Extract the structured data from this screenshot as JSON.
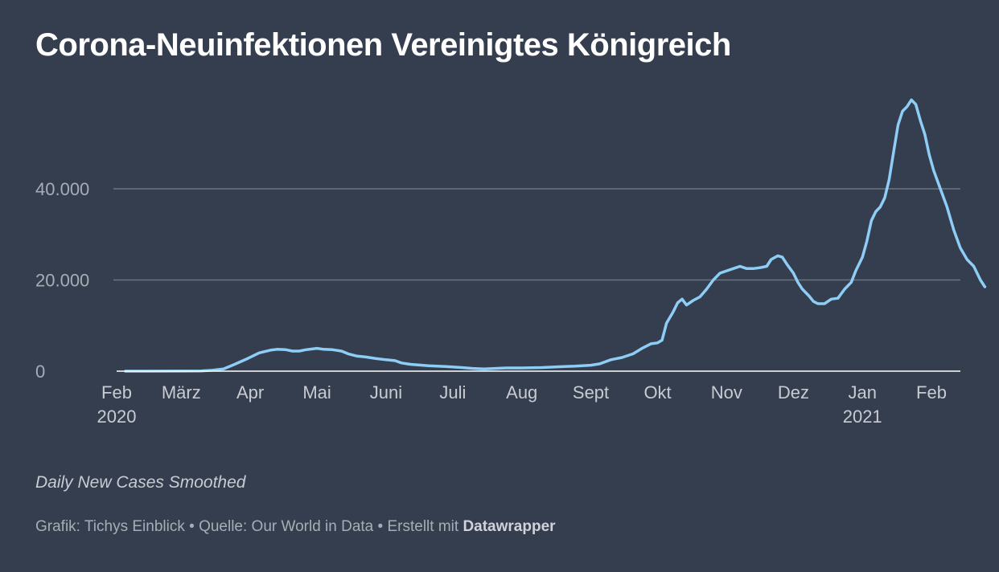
{
  "title": "Corona-Neuinfektionen Vereinigtes Königreich",
  "note": "Daily New Cases Smoothed",
  "credits": {
    "grafik_label": "Grafik:",
    "grafik_value": "Tichys Einblick",
    "sep1": "•",
    "quelle_label": "Quelle:",
    "quelle_value": "Our World in Data",
    "sep2": "•",
    "erstellt_label": "Erstellt mit",
    "tool": "Datawrapper"
  },
  "colors": {
    "background": "#343e4e",
    "line": "#8ecdf5",
    "gridline": "#6b737f",
    "baseline": "#ffffff"
  },
  "chart_data": {
    "type": "line",
    "title": "Corona-Neuinfektionen Vereinigtes Königreich",
    "ylim": [
      0,
      60000
    ],
    "yticks": [
      {
        "value": 0,
        "label": "0"
      },
      {
        "value": 20000,
        "label": "20.000"
      },
      {
        "value": 40000,
        "label": "40.000"
      }
    ],
    "xlim": [
      "2020-02-01",
      "2021-02-28"
    ],
    "xticks": [
      {
        "date": "2020-02-01",
        "label": "Feb",
        "year": "2020"
      },
      {
        "date": "2020-03-01",
        "label": "März"
      },
      {
        "date": "2020-04-01",
        "label": "Apr"
      },
      {
        "date": "2020-05-01",
        "label": "Mai"
      },
      {
        "date": "2020-06-01",
        "label": "Juni"
      },
      {
        "date": "2020-07-01",
        "label": "Juli"
      },
      {
        "date": "2020-08-01",
        "label": "Aug"
      },
      {
        "date": "2020-09-01",
        "label": "Sept"
      },
      {
        "date": "2020-10-01",
        "label": "Okt"
      },
      {
        "date": "2020-11-01",
        "label": "Nov"
      },
      {
        "date": "2020-12-01",
        "label": "Dez"
      },
      {
        "date": "2021-01-01",
        "label": "Jan",
        "year": "2021"
      },
      {
        "date": "2021-02-01",
        "label": "Feb"
      }
    ],
    "grid": true,
    "series": [
      {
        "points": [
          [
            "2020-02-01",
            0
          ],
          [
            "2020-02-15",
            0
          ],
          [
            "2020-03-01",
            10
          ],
          [
            "2020-03-10",
            60
          ],
          [
            "2020-03-15",
            200
          ],
          [
            "2020-03-20",
            500
          ],
          [
            "2020-03-25",
            1500
          ],
          [
            "2020-03-31",
            2800
          ],
          [
            "2020-04-05",
            4000
          ],
          [
            "2020-04-10",
            4600
          ],
          [
            "2020-04-13",
            4800
          ],
          [
            "2020-04-17",
            4700
          ],
          [
            "2020-04-20",
            4400
          ],
          [
            "2020-04-23",
            4400
          ],
          [
            "2020-04-26",
            4700
          ],
          [
            "2020-05-01",
            5000
          ],
          [
            "2020-05-04",
            4800
          ],
          [
            "2020-05-08",
            4700
          ],
          [
            "2020-05-12",
            4400
          ],
          [
            "2020-05-15",
            3800
          ],
          [
            "2020-05-19",
            3300
          ],
          [
            "2020-05-23",
            3100
          ],
          [
            "2020-05-27",
            2800
          ],
          [
            "2020-06-01",
            2500
          ],
          [
            "2020-06-05",
            2300
          ],
          [
            "2020-06-08",
            1800
          ],
          [
            "2020-06-12",
            1500
          ],
          [
            "2020-06-20",
            1200
          ],
          [
            "2020-06-28",
            1000
          ],
          [
            "2020-07-05",
            800
          ],
          [
            "2020-07-10",
            600
          ],
          [
            "2020-07-15",
            500
          ],
          [
            "2020-07-20",
            600
          ],
          [
            "2020-07-25",
            700
          ],
          [
            "2020-08-01",
            700
          ],
          [
            "2020-08-10",
            800
          ],
          [
            "2020-08-20",
            1000
          ],
          [
            "2020-08-25",
            1100
          ],
          [
            "2020-09-01",
            1300
          ],
          [
            "2020-09-05",
            1600
          ],
          [
            "2020-09-10",
            2500
          ],
          [
            "2020-09-15",
            3000
          ],
          [
            "2020-09-20",
            3800
          ],
          [
            "2020-09-24",
            5000
          ],
          [
            "2020-09-28",
            6000
          ],
          [
            "2020-10-01",
            6200
          ],
          [
            "2020-10-03",
            6800
          ],
          [
            "2020-10-05",
            10500
          ],
          [
            "2020-10-08",
            13000
          ],
          [
            "2020-10-10",
            15000
          ],
          [
            "2020-10-12",
            15800
          ],
          [
            "2020-10-14",
            14500
          ],
          [
            "2020-10-17",
            15500
          ],
          [
            "2020-10-20",
            16300
          ],
          [
            "2020-10-23",
            18000
          ],
          [
            "2020-10-26",
            20000
          ],
          [
            "2020-10-29",
            21500
          ],
          [
            "2020-11-01",
            22000
          ],
          [
            "2020-11-04",
            22500
          ],
          [
            "2020-11-07",
            23000
          ],
          [
            "2020-11-10",
            22500
          ],
          [
            "2020-11-13",
            22500
          ],
          [
            "2020-11-16",
            22700
          ],
          [
            "2020-11-19",
            23000
          ],
          [
            "2020-11-21",
            24500
          ],
          [
            "2020-11-24",
            25300
          ],
          [
            "2020-11-26",
            25000
          ],
          [
            "2020-11-28",
            23500
          ],
          [
            "2020-12-01",
            21500
          ],
          [
            "2020-12-03",
            19500
          ],
          [
            "2020-12-05",
            18000
          ],
          [
            "2020-12-08",
            16500
          ],
          [
            "2020-12-10",
            15300
          ],
          [
            "2020-12-12",
            14800
          ],
          [
            "2020-12-15",
            14800
          ],
          [
            "2020-12-18",
            15800
          ],
          [
            "2020-12-21",
            16000
          ],
          [
            "2020-12-24",
            18000
          ],
          [
            "2020-12-27",
            19500
          ],
          [
            "2020-12-29",
            22000
          ],
          [
            "2021-01-01",
            25000
          ],
          [
            "2021-01-03",
            28500
          ],
          [
            "2021-01-05",
            33000
          ],
          [
            "2021-01-07",
            35000
          ],
          [
            "2021-01-09",
            36000
          ],
          [
            "2021-01-11",
            38000
          ],
          [
            "2021-01-13",
            42000
          ],
          [
            "2021-01-15",
            48000
          ],
          [
            "2021-01-17",
            54000
          ],
          [
            "2021-01-19",
            57000
          ],
          [
            "2021-01-21",
            58000
          ],
          [
            "2021-01-23",
            59500
          ],
          [
            "2021-01-25",
            58500
          ],
          [
            "2021-01-27",
            55000
          ],
          [
            "2021-01-29",
            52000
          ],
          [
            "2021-01-31",
            47500
          ],
          [
            "2021-02-02",
            44000
          ],
          [
            "2021-02-05",
            40000
          ],
          [
            "2021-02-08",
            36000
          ],
          [
            "2021-02-11",
            31000
          ],
          [
            "2021-02-14",
            27000
          ],
          [
            "2021-02-17",
            24500
          ],
          [
            "2021-02-20",
            23000
          ],
          [
            "2021-02-23",
            20000
          ],
          [
            "2021-02-25",
            18500
          ]
        ]
      }
    ]
  }
}
